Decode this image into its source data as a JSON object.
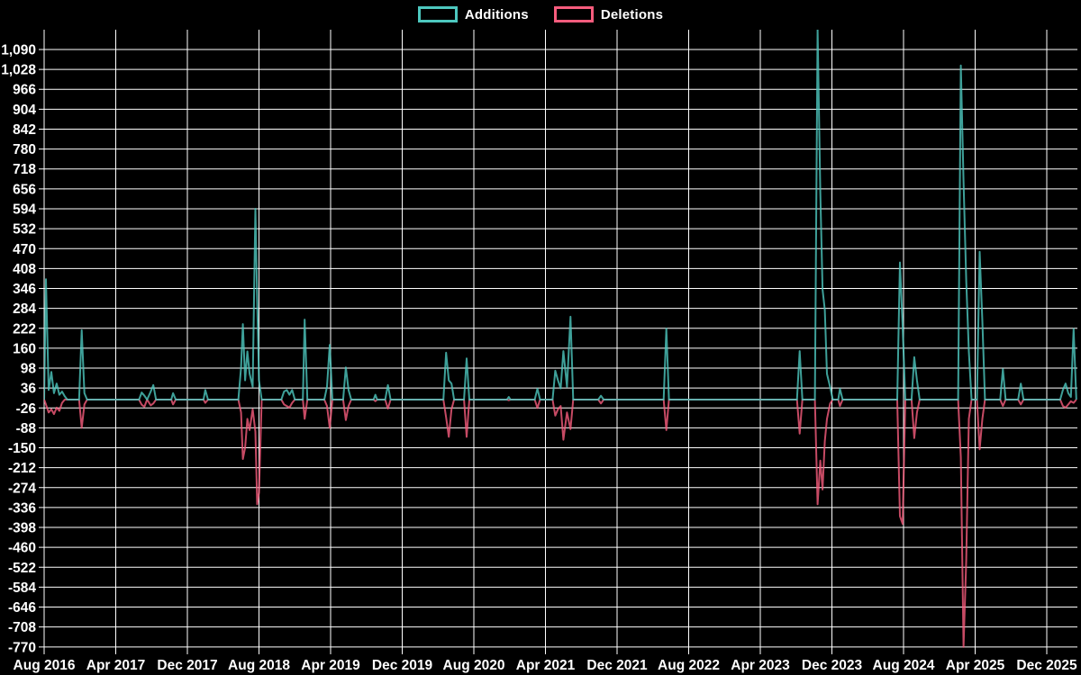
{
  "legend": {
    "additions_label": "Additions",
    "deletions_label": "Deletions"
  },
  "colors": {
    "background": "#000000",
    "grid": "#ffffff",
    "text": "#ffffff",
    "additions": "#4dc8bf",
    "deletions": "#f75c7d"
  },
  "chart_data": {
    "type": "line",
    "title": "",
    "xlabel": "",
    "ylabel": "",
    "legend_position": "top-center",
    "grid": true,
    "ylim": [
      -770,
      1090
    ],
    "y_tick_step": 62,
    "y_ticks": [
      1090,
      1028,
      966,
      904,
      842,
      780,
      718,
      656,
      594,
      532,
      470,
      408,
      346,
      284,
      222,
      160,
      98,
      36,
      -26,
      -88,
      -150,
      -212,
      -274,
      -336,
      -398,
      -460,
      -522,
      -584,
      -646,
      -708,
      -770
    ],
    "y_tick_labels": [
      "1,090",
      "1,028",
      "966",
      "904",
      "842",
      "780",
      "718",
      "656",
      "594",
      "532",
      "470",
      "408",
      "346",
      "284",
      "222",
      "160",
      "98",
      "36",
      "-26",
      "-88",
      "-150",
      "-212",
      "-274",
      "-336",
      "-398",
      "-460",
      "-522",
      "-584",
      "-646",
      "-708",
      "-770"
    ],
    "x_tick_labels": [
      "Aug 2016",
      "Apr 2017",
      "Dec 2017",
      "Aug 2018",
      "Apr 2019",
      "Dec 2019",
      "Aug 2020",
      "Apr 2021",
      "Dec 2021",
      "Aug 2022",
      "Apr 2023",
      "Dec 2023",
      "Aug 2024",
      "Apr 2025",
      "Dec 2025"
    ],
    "x_tick_interval_months": 8,
    "series": [
      {
        "name": "Additions",
        "color": "#4dc8bf",
        "sign": 1
      },
      {
        "name": "Deletions",
        "color": "#f75c7d",
        "sign": -1
      }
    ],
    "points_format": [
      "months_since_aug_2016",
      "additions",
      "deletions_magnitude"
    ],
    "points": [
      [
        0,
        0,
        0
      ],
      [
        0.2,
        375,
        15
      ],
      [
        0.5,
        30,
        40
      ],
      [
        0.8,
        86,
        30
      ],
      [
        1.1,
        20,
        45
      ],
      [
        1.4,
        50,
        25
      ],
      [
        1.7,
        15,
        35
      ],
      [
        2.0,
        25,
        10
      ],
      [
        2.3,
        10,
        0
      ],
      [
        2.6,
        0,
        0
      ],
      [
        3.9,
        0,
        0
      ],
      [
        4.2,
        216,
        88
      ],
      [
        4.5,
        20,
        15
      ],
      [
        4.8,
        0,
        0
      ],
      [
        10.6,
        0,
        0
      ],
      [
        10.9,
        22,
        16
      ],
      [
        11.2,
        12,
        22
      ],
      [
        11.5,
        0,
        0
      ],
      [
        11.9,
        25,
        18
      ],
      [
        12.2,
        45,
        12
      ],
      [
        12.5,
        0,
        0
      ],
      [
        14.2,
        0,
        0
      ],
      [
        14.4,
        20,
        15
      ],
      [
        14.7,
        0,
        0
      ],
      [
        17.8,
        0,
        0
      ],
      [
        18.0,
        30,
        10
      ],
      [
        18.3,
        0,
        0
      ],
      [
        21.7,
        0,
        0
      ],
      [
        22.0,
        100,
        40
      ],
      [
        22.2,
        235,
        185
      ],
      [
        22.45,
        60,
        150
      ],
      [
        22.7,
        150,
        60
      ],
      [
        22.95,
        80,
        95
      ],
      [
        23.3,
        40,
        30
      ],
      [
        23.6,
        594,
        100
      ],
      [
        23.8,
        310,
        326
      ],
      [
        24.0,
        60,
        290
      ],
      [
        24.3,
        0,
        0
      ],
      [
        26.5,
        0,
        0
      ],
      [
        26.8,
        25,
        15
      ],
      [
        27.1,
        30,
        20
      ],
      [
        27.4,
        15,
        25
      ],
      [
        27.7,
        30,
        10
      ],
      [
        28.0,
        0,
        0
      ],
      [
        28.9,
        0,
        0
      ],
      [
        29.1,
        249,
        60
      ],
      [
        29.4,
        0,
        0
      ],
      [
        31.3,
        0,
        0
      ],
      [
        31.6,
        40,
        20
      ],
      [
        31.9,
        170,
        88
      ],
      [
        32.2,
        0,
        0
      ],
      [
        33.4,
        0,
        0
      ],
      [
        33.7,
        100,
        64
      ],
      [
        34.0,
        30,
        20
      ],
      [
        34.3,
        0,
        0
      ],
      [
        36.8,
        0,
        0
      ],
      [
        37.0,
        15,
        5
      ],
      [
        37.2,
        0,
        0
      ],
      [
        38.1,
        0,
        0
      ],
      [
        38.4,
        45,
        28
      ],
      [
        38.7,
        0,
        0
      ],
      [
        44.6,
        0,
        0
      ],
      [
        44.9,
        146,
        55
      ],
      [
        45.2,
        60,
        116
      ],
      [
        45.5,
        50,
        30
      ],
      [
        45.8,
        0,
        0
      ],
      [
        46.9,
        0,
        0
      ],
      [
        47.2,
        128,
        116
      ],
      [
        47.5,
        0,
        0
      ],
      [
        51.7,
        0,
        0
      ],
      [
        51.9,
        8,
        2
      ],
      [
        52.1,
        0,
        0
      ],
      [
        54.8,
        0,
        0
      ],
      [
        55.1,
        34,
        26
      ],
      [
        55.4,
        0,
        0
      ],
      [
        56.8,
        0,
        0
      ],
      [
        57.1,
        90,
        50
      ],
      [
        57.4,
        60,
        30
      ],
      [
        57.7,
        35,
        20
      ],
      [
        58.0,
        151,
        125
      ],
      [
        58.4,
        40,
        40
      ],
      [
        58.8,
        258,
        92
      ],
      [
        59.1,
        0,
        0
      ],
      [
        61.9,
        0,
        0
      ],
      [
        62.2,
        12,
        12
      ],
      [
        62.5,
        0,
        0
      ],
      [
        69.2,
        0,
        0
      ],
      [
        69.5,
        221,
        95
      ],
      [
        69.8,
        0,
        0
      ],
      [
        84.1,
        0,
        0
      ],
      [
        84.4,
        151,
        106
      ],
      [
        84.7,
        0,
        0
      ],
      [
        86.1,
        0,
        0
      ],
      [
        86.4,
        1152,
        326
      ],
      [
        86.7,
        647,
        190
      ],
      [
        86.95,
        343,
        280
      ],
      [
        87.2,
        280,
        130
      ],
      [
        87.45,
        80,
        60
      ],
      [
        87.8,
        39,
        12
      ],
      [
        88.1,
        0,
        0
      ],
      [
        88.7,
        0,
        0
      ],
      [
        88.9,
        34,
        20
      ],
      [
        89.2,
        0,
        0
      ],
      [
        95.3,
        0,
        0
      ],
      [
        95.6,
        427,
        363
      ],
      [
        95.9,
        226,
        387
      ],
      [
        96.2,
        0,
        0
      ],
      [
        96.9,
        0,
        0
      ],
      [
        97.2,
        132,
        120
      ],
      [
        97.5,
        60,
        40
      ],
      [
        97.8,
        0,
        0
      ],
      [
        102.1,
        0,
        0
      ],
      [
        102.4,
        1040,
        180
      ],
      [
        102.7,
        680,
        770
      ],
      [
        103.0,
        370,
        500
      ],
      [
        103.3,
        150,
        60
      ],
      [
        103.6,
        0,
        0
      ],
      [
        104.2,
        0,
        0
      ],
      [
        104.5,
        460,
        155
      ],
      [
        104.8,
        244,
        60
      ],
      [
        105.1,
        0,
        0
      ],
      [
        106.8,
        0,
        0
      ],
      [
        107.1,
        95,
        20
      ],
      [
        107.4,
        0,
        0
      ],
      [
        108.8,
        0,
        0
      ],
      [
        109.1,
        50,
        15
      ],
      [
        109.4,
        0,
        0
      ],
      [
        113.5,
        0,
        0
      ],
      [
        113.8,
        30,
        20
      ],
      [
        114.1,
        50,
        25
      ],
      [
        114.4,
        20,
        15
      ],
      [
        114.7,
        8,
        5
      ],
      [
        115.0,
        220,
        10
      ],
      [
        115.3,
        0,
        0
      ]
    ]
  }
}
